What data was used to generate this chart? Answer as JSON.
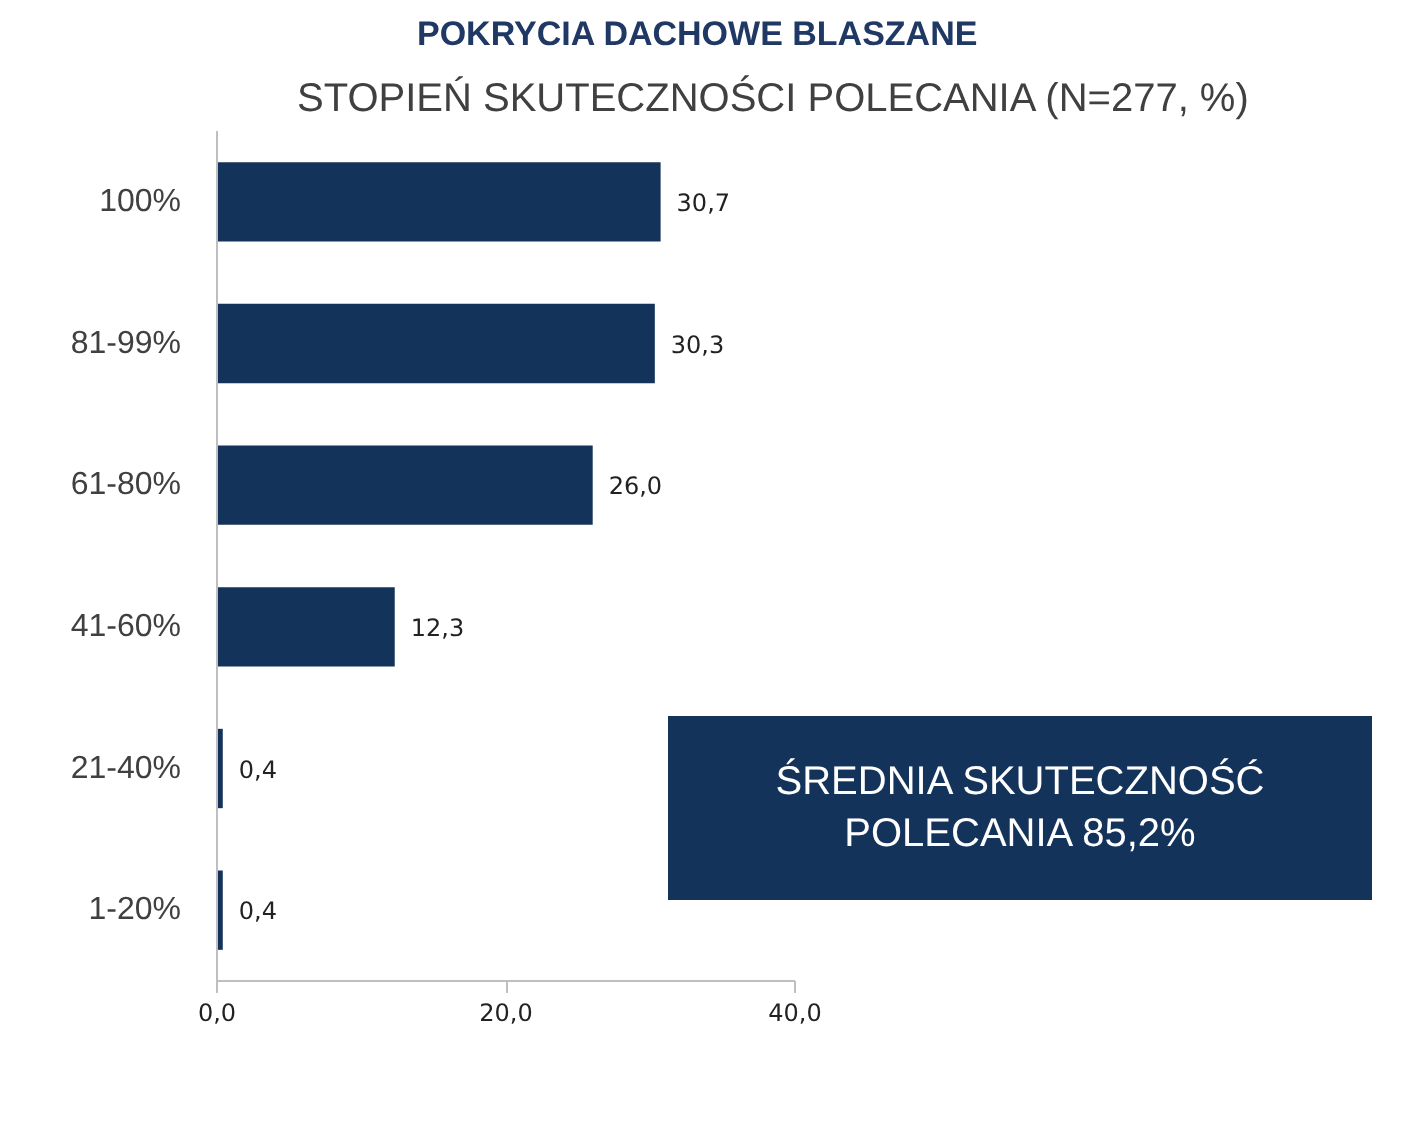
{
  "chart_data": {
    "type": "bar",
    "orientation": "horizontal",
    "title": "POKRYCIA DACHOWE BLASZANE",
    "subtitle": "STOPIEŃ SKUTECZNOŚCI POLECANIA (N=277, %)",
    "categories": [
      "100%",
      "81-99%",
      "61-80%",
      "41-60%",
      "21-40%",
      "1-20%"
    ],
    "values": [
      30.7,
      30.3,
      26.0,
      12.3,
      0.4,
      0.4
    ],
    "value_labels": [
      "30,7",
      "30,3",
      "26,0",
      "12,3",
      "0,4",
      "0,4"
    ],
    "color": "#14335a",
    "xlim": [
      0,
      40
    ],
    "xticks": [
      {
        "value": 0,
        "label": "0,0"
      },
      {
        "value": 20,
        "label": "20,0"
      },
      {
        "value": 40,
        "label": "40,0"
      }
    ],
    "grid": false,
    "annotations": [
      "ŚREDNIA SKUTECZNOŚĆ\nPOLECANIA 85,2%"
    ]
  }
}
